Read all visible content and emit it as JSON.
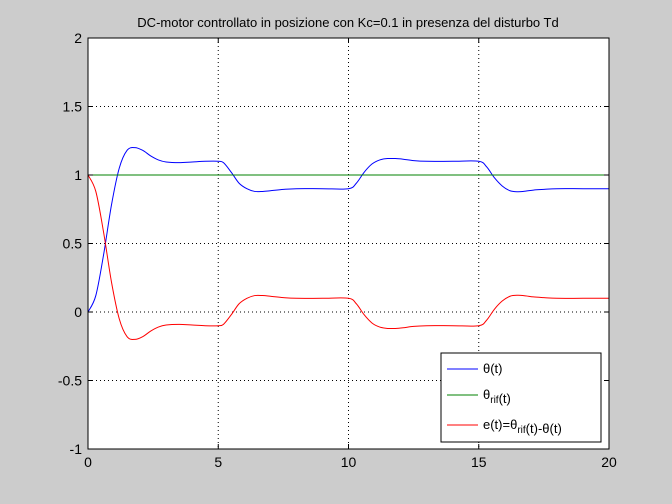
{
  "chart_data": {
    "type": "line",
    "title": "DC-motor controllato in posizione con Kc=0.1 in presenza del disturbo Td",
    "xlabel": "",
    "ylabel": "",
    "xlim": [
      0,
      20
    ],
    "ylim": [
      -1,
      2
    ],
    "xticks": [
      0,
      5,
      10,
      15,
      20
    ],
    "xtick_labels": [
      "0",
      "5",
      "10",
      "15",
      "20"
    ],
    "yticks": [
      -1,
      -0.5,
      0,
      0.5,
      1,
      1.5,
      2
    ],
    "ytick_labels": [
      "-1",
      "-0.5",
      "0",
      "0.5",
      "1",
      "1.5",
      "2"
    ],
    "grid": true,
    "legend_position": "bottom-right",
    "series": [
      {
        "legend": [
          {
            "t": "θ(t)"
          }
        ],
        "color": "#0000ff",
        "x": [
          0,
          0.3,
          0.6,
          0.9,
          1.2,
          1.5,
          1.8,
          2.1,
          2.4,
          2.7,
          3.0,
          3.5,
          4.0,
          4.5,
          5.0,
          5.2,
          5.5,
          5.8,
          6.1,
          6.4,
          6.7,
          7.0,
          7.5,
          8.0,
          9.0,
          10.0,
          10.3,
          10.6,
          10.9,
          11.2,
          11.5,
          11.8,
          12.1,
          12.5,
          13.0,
          14.0,
          15.0,
          15.3,
          15.6,
          15.9,
          16.2,
          16.5,
          16.8,
          17.1,
          17.5,
          18.0,
          19.0,
          20.0
        ],
        "values": [
          0,
          0.12,
          0.42,
          0.78,
          1.05,
          1.18,
          1.2,
          1.18,
          1.14,
          1.11,
          1.095,
          1.09,
          1.095,
          1.1,
          1.1,
          1.09,
          1.02,
          0.94,
          0.9,
          0.88,
          0.88,
          0.885,
          0.895,
          0.9,
          0.9,
          0.9,
          0.94,
          1.02,
          1.08,
          1.11,
          1.12,
          1.12,
          1.115,
          1.105,
          1.1,
          1.1,
          1.1,
          1.06,
          0.98,
          0.92,
          0.885,
          0.878,
          0.882,
          0.89,
          0.895,
          0.9,
          0.9,
          0.9
        ]
      },
      {
        "legend": [
          {
            "t": "θ"
          },
          {
            "t": "rif",
            "sub": true
          },
          {
            "t": "(t)"
          }
        ],
        "color": "#008000",
        "x": [
          0,
          20
        ],
        "values": [
          1,
          1
        ]
      },
      {
        "legend": [
          {
            "t": "e(t)=θ"
          },
          {
            "t": "rif",
            "sub": true
          },
          {
            "t": "(t)-θ(t)"
          }
        ],
        "color": "#ff0000",
        "x": [
          0,
          0.3,
          0.6,
          0.9,
          1.2,
          1.5,
          1.8,
          2.1,
          2.4,
          2.7,
          3.0,
          3.5,
          4.0,
          4.5,
          5.0,
          5.2,
          5.5,
          5.8,
          6.1,
          6.4,
          6.7,
          7.0,
          7.5,
          8.0,
          9.0,
          10.0,
          10.3,
          10.6,
          10.9,
          11.2,
          11.5,
          11.8,
          12.1,
          12.5,
          13.0,
          14.0,
          15.0,
          15.3,
          15.6,
          15.9,
          16.2,
          16.5,
          16.8,
          17.1,
          17.5,
          18.0,
          19.0,
          20.0
        ],
        "values": [
          1,
          0.88,
          0.58,
          0.22,
          -0.05,
          -0.18,
          -0.2,
          -0.18,
          -0.14,
          -0.11,
          -0.095,
          -0.09,
          -0.095,
          -0.1,
          -0.1,
          -0.09,
          -0.02,
          0.06,
          0.1,
          0.12,
          0.12,
          0.115,
          0.105,
          0.1,
          0.1,
          0.1,
          0.06,
          -0.02,
          -0.08,
          -0.11,
          -0.12,
          -0.12,
          -0.115,
          -0.105,
          -0.1,
          -0.1,
          -0.1,
          -0.06,
          0.02,
          0.08,
          0.115,
          0.122,
          0.118,
          0.11,
          0.105,
          0.1,
          0.1,
          0.1
        ]
      }
    ]
  }
}
